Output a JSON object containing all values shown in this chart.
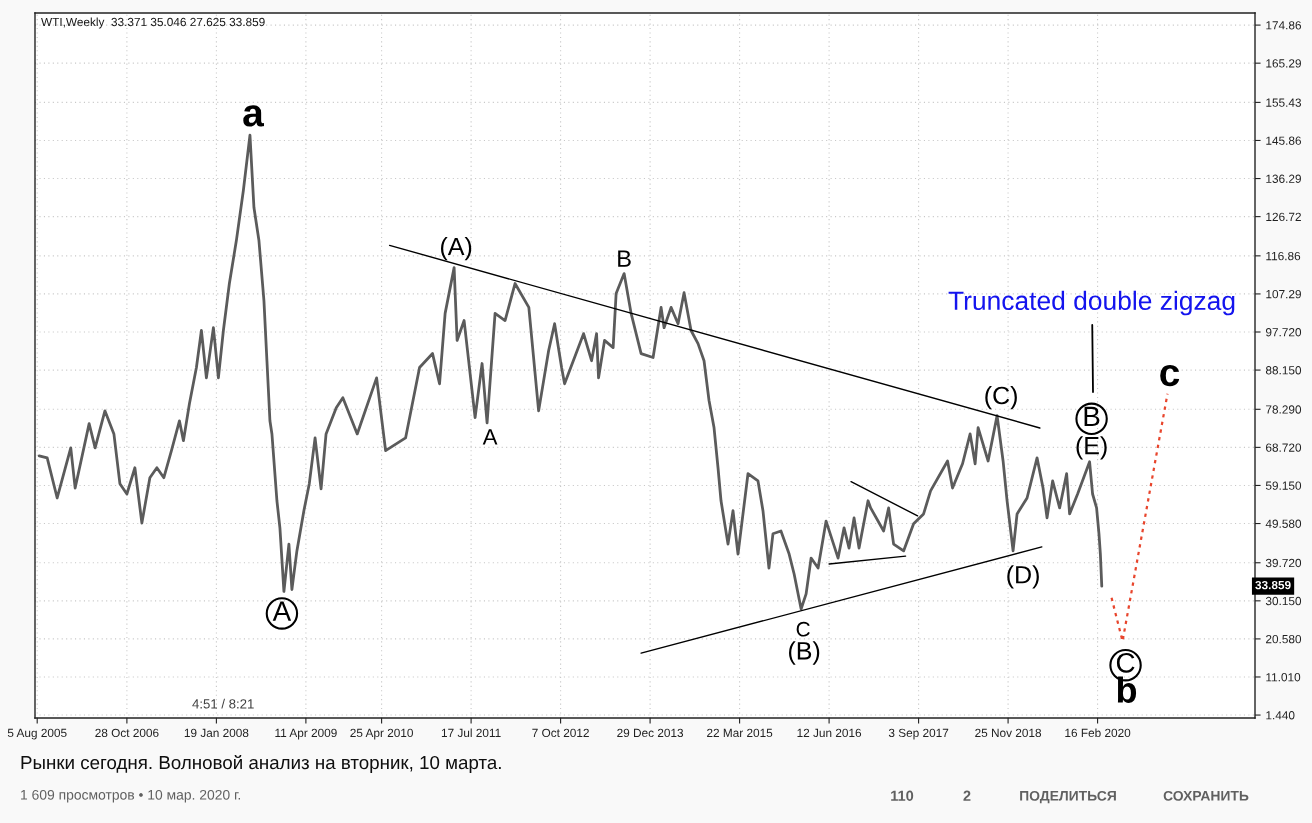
{
  "chart_data": {
    "type": "line",
    "title": "WTI,Weekly  33.371 35.046 27.625 33.859",
    "xlim": [
      "2005-07-25",
      "2022-04-14"
    ],
    "ylim": [
      0.7,
      177.9
    ],
    "xticks": [
      {
        "value": "2005-08-05",
        "label": "5 Aug 2005"
      },
      {
        "value": "2006-10-28",
        "label": "28 Oct 2006"
      },
      {
        "value": "2008-01-19",
        "label": "19 Jan 2008"
      },
      {
        "value": "2009-04-11",
        "label": "11 Apr 2009"
      },
      {
        "value": "2010-04-25",
        "label": "25 Apr 2010"
      },
      {
        "value": "2011-07-17",
        "label": "17 Jul 2011"
      },
      {
        "value": "2012-10-07",
        "label": "7 Oct 2012"
      },
      {
        "value": "2013-12-29",
        "label": "29 Dec 2013"
      },
      {
        "value": "2015-03-22",
        "label": "22 Mar 2015"
      },
      {
        "value": "2016-06-12",
        "label": "12 Jun 2016"
      },
      {
        "value": "2017-09-03",
        "label": "3 Sep 2017"
      },
      {
        "value": "2018-11-25",
        "label": "25 Nov 2018"
      },
      {
        "value": "2020-02-16",
        "label": "16 Feb 2020"
      }
    ],
    "yticks": [
      {
        "value": 1.44,
        "label": "1.440"
      },
      {
        "value": 11.01,
        "label": "11.010"
      },
      {
        "value": 20.58,
        "label": "20.580"
      },
      {
        "value": 30.15,
        "label": "30.150"
      },
      {
        "value": 39.72,
        "label": "39.720"
      },
      {
        "value": 49.58,
        "label": "49.580"
      },
      {
        "value": 59.15,
        "label": "59.150"
      },
      {
        "value": 68.72,
        "label": "68.720"
      },
      {
        "value": 78.29,
        "label": "78.290"
      },
      {
        "value": 88.15,
        "label": "88.150"
      },
      {
        "value": 97.72,
        "label": "97.720"
      },
      107.29,
      116.86,
      126.72,
      136.29,
      145.86,
      155.43,
      165.29,
      174.86
    ],
    "grid": true,
    "line_style": "solid",
    "series": [
      {
        "color": "#5b5b5b",
        "x": [
          "2005-08-15",
          "2005-09-24",
          "2005-11-13",
          "2006-01-20",
          "2006-02-11",
          "2006-04-22",
          "2006-05-22",
          "2006-07-10",
          "2006-08-24",
          "2006-09-23",
          "2006-10-28",
          "2006-12-07",
          "2007-01-11",
          "2007-02-20",
          "2007-03-27",
          "2007-05-01",
          "2007-06-08",
          "2007-07-18",
          "2007-08-07",
          "2007-09-06",
          "2007-10-11",
          "2007-11-05",
          "2007-11-30",
          "2008-01-04",
          "2008-01-29",
          "2008-02-23",
          "2008-03-24",
          "2008-04-28",
          "2008-06-02",
          "2008-07-05",
          "2008-07-25",
          "2008-08-19",
          "2008-09-13",
          "2008-09-28",
          "2008-10-13",
          "2008-10-23",
          "2008-11-17",
          "2008-12-02",
          "2008-12-22",
          "2009-01-16",
          "2009-01-31",
          "2009-02-25",
          "2009-04-01",
          "2009-04-28",
          "2009-05-27",
          "2009-06-26",
          "2009-07-21",
          "2009-09-10",
          "2009-10-13",
          "2009-12-24",
          "2010-03-31",
          "2010-05-15",
          "2010-08-23",
          "2010-11-01",
          "2011-01-05",
          "2011-02-09",
          "2011-03-09",
          "2011-04-23",
          "2011-05-08",
          "2011-06-12",
          "2011-08-06",
          "2011-09-10",
          "2011-10-05",
          "2011-11-14",
          "2012-01-03",
          "2012-02-22",
          "2012-05-01",
          "2012-06-19",
          "2012-08-08",
          "2012-09-07",
          "2012-10-12",
          "2012-10-27",
          "2013-01-30",
          "2013-03-11",
          "2013-04-05",
          "2013-04-15",
          "2013-05-15",
          "2013-06-27",
          "2013-07-12",
          "2013-08-21",
          "2013-09-25",
          "2013-11-14",
          "2014-01-13",
          "2014-02-22",
          "2014-03-09",
          "2014-04-13",
          "2014-05-18",
          "2014-06-17",
          "2014-07-22",
          "2014-08-26",
          "2014-09-25",
          "2014-10-20",
          "2014-11-14",
          "2014-12-04",
          "2014-12-19",
          "2015-01-23",
          "2015-02-17",
          "2015-03-14",
          "2015-05-03",
          "2015-06-22",
          "2015-07-17",
          "2015-08-16",
          "2015-09-05",
          "2015-10-15",
          "2015-11-25",
          "2015-12-20",
          "2016-01-24",
          "2016-02-18",
          "2016-03-14",
          "2016-04-18",
          "2016-05-28",
          "2016-07-27",
          "2016-08-26",
          "2016-09-20",
          "2016-10-15",
          "2016-11-09",
          "2016-12-24",
          "2017-01-06",
          "2017-03-12",
          "2017-04-06",
          "2017-05-01",
          "2017-06-20",
          "2017-08-09",
          "2017-09-28",
          "2017-11-02",
          "2018-01-26",
          "2018-02-20",
          "2018-04-11",
          "2018-05-19",
          "2018-06-13",
          "2018-06-28",
          "2018-08-17",
          "2018-10-01",
          "2018-10-31",
          "2018-11-20",
          "2018-12-20",
          "2019-01-09",
          "2019-02-28",
          "2019-04-19",
          "2019-05-19",
          "2019-06-08",
          "2019-07-06",
          "2019-08-10",
          "2019-09-14",
          "2019-09-29",
          "2019-11-08",
          "2020-01-07",
          "2020-01-22",
          "2020-02-11",
          "2020-02-23",
          "2020-03-01",
          "2020-03-08"
        ],
        "values": [
          66.6,
          66.1,
          56.0,
          68.6,
          58.5,
          74.7,
          68.6,
          77.9,
          72.1,
          59.6,
          57.0,
          63.6,
          49.7,
          61.1,
          63.6,
          61.1,
          67.9,
          75.4,
          70.4,
          79.7,
          88.8,
          98.1,
          86.2,
          98.8,
          86.2,
          98.1,
          109.9,
          120.7,
          133.3,
          147.2,
          129.0,
          120.7,
          105.6,
          90.5,
          75.4,
          72.1,
          55.3,
          48.5,
          32.5,
          44.4,
          33.0,
          42.7,
          52.8,
          59.6,
          71.1,
          58.3,
          72.1,
          78.7,
          81.2,
          72.1,
          86.2,
          67.9,
          71.1,
          88.8,
          92.3,
          84.7,
          102.4,
          113.9,
          95.6,
          100.6,
          76.2,
          89.8,
          74.9,
          102.4,
          100.6,
          109.9,
          103.9,
          77.9,
          93.0,
          99.8,
          88.8,
          84.7,
          97.3,
          90.5,
          97.3,
          86.2,
          95.6,
          93.8,
          107.4,
          112.4,
          102.4,
          92.3,
          91.3,
          103.9,
          98.8,
          103.9,
          99.8,
          107.6,
          98.1,
          94.8,
          90.5,
          80.5,
          73.7,
          63.6,
          55.3,
          44.4,
          52.8,
          41.9,
          62.1,
          60.3,
          52.8,
          38.4,
          47.0,
          47.7,
          41.9,
          36.9,
          28.1,
          31.9,
          40.9,
          38.4,
          50.2,
          40.9,
          48.5,
          43.4,
          51.0,
          43.4,
          55.3,
          53.5,
          47.7,
          53.5,
          44.4,
          42.7,
          49.5,
          52.0,
          57.8,
          65.3,
          58.5,
          64.6,
          72.1,
          64.6,
          73.7,
          65.3,
          76.7,
          65.3,
          55.3,
          42.7,
          52.0,
          56.0,
          66.1,
          58.5,
          51.0,
          60.3,
          53.5,
          62.1,
          52.0,
          57.0,
          65.1,
          57.0,
          53.5,
          47.0,
          41.9,
          33.859
        ]
      },
      {
        "color": "#000000",
        "x": [
          "2010-06-04",
          "2019-05-03"
        ],
        "values": [
          119.5,
          73.6
        ]
      },
      {
        "color": "#000000",
        "x": [
          "2013-11-14",
          "2019-05-13"
        ],
        "values": [
          17.0,
          43.7
        ]
      },
      {
        "color": "#000000",
        "x": [
          "2016-09-30",
          "2017-08-29"
        ],
        "values": [
          60.1,
          51.5
        ]
      },
      {
        "color": "#000000",
        "x": [
          "2016-06-12",
          "2017-06-30"
        ],
        "values": [
          39.4,
          41.4
        ]
      },
      {
        "color": "#e8452c",
        "line_style": "dotted",
        "x": [
          "2020-04-26",
          "2020-06-20",
          "2021-01-31"
        ],
        "values": [
          30.9,
          20.0,
          82.2
        ]
      }
    ],
    "annotations": [
      {
        "text": "a",
        "x": "2008-07-05",
        "y": 147.2
      },
      {
        "text": "A",
        "x": "2008-12-22",
        "y": 32.5
      },
      {
        "text": "(A)",
        "x": "2011-04-23",
        "y": 113.9
      },
      {
        "text": "A",
        "x": "2011-10-05",
        "y": 74.9
      },
      {
        "text": "B",
        "x": "2013-08-21",
        "y": 112.4
      },
      {
        "text": "C",
        "x": "2016-01-24",
        "y": 28.1
      },
      {
        "text": "(B)",
        "x": "2016-01-24",
        "y": 28.1
      },
      {
        "text": "(C)",
        "x": "2018-10-01",
        "y": 76.7
      },
      {
        "text": "(D)",
        "x": "2018-12-20",
        "y": 42.7
      },
      {
        "text": "B",
        "x": "2020-01-07",
        "y": 65.1
      },
      {
        "text": "(E)",
        "x": "2020-01-07",
        "y": 65.1
      },
      "Truncated double zigzag",
      {
        "text": "C",
        "x": "2020-06-20",
        "y": 20.0
      },
      {
        "text": "b",
        "x": "2020-06-20",
        "y": 20.0
      },
      {
        "text": "c",
        "x": "2021-01-31",
        "y": 82.2
      },
      {
        "text": "33.859",
        "y": 33.859
      },
      "Рынки сегодня. Волновой анализ на вторник, 10 марта.",
      "1 609 просмотров • 10 мар. 2020 г.",
      "110",
      "2",
      "ПОДЕЛИТЬСЯ",
      "СОХРАНИТЬ",
      "4:51 / 8:21"
    ]
  }
}
